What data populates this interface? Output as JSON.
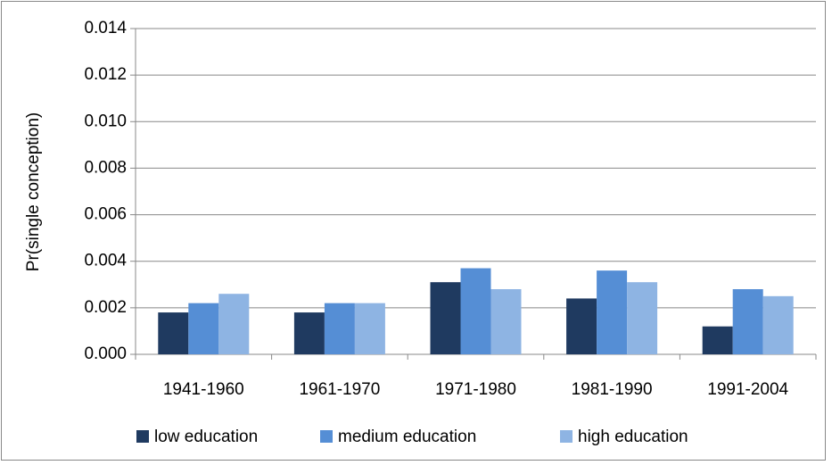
{
  "chart_data": {
    "type": "bar",
    "y_label": "Pr(single conception)",
    "categories": [
      "1941-1960",
      "1961-1970",
      "1971-1980",
      "1981-1990",
      "1991-2004"
    ],
    "series": [
      {
        "name": "low education",
        "color": "#1f3a60",
        "values": [
          0.0018,
          0.0018,
          0.0031,
          0.0024,
          0.0012
        ]
      },
      {
        "name": "medium education",
        "color": "#558ed5",
        "values": [
          0.0022,
          0.0022,
          0.0037,
          0.0036,
          0.0028
        ]
      },
      {
        "name": "high education",
        "color": "#8eb4e3",
        "values": [
          0.0026,
          0.0022,
          0.0028,
          0.0031,
          0.0025
        ]
      }
    ],
    "ylim": [
      0,
      0.014
    ],
    "yticks": [
      {
        "value": 0,
        "label": "0.000"
      },
      {
        "value": 0.002,
        "label": "0.002"
      },
      {
        "value": 0.004,
        "label": "0.004"
      },
      {
        "value": 0.006,
        "label": "0.006"
      },
      {
        "value": 0.008,
        "label": "0.008"
      },
      {
        "value": 0.01,
        "label": "0.010"
      },
      {
        "value": 0.012,
        "label": "0.012"
      },
      {
        "value": 0.014,
        "label": "0.014"
      }
    ],
    "grid": true,
    "legend": "bottom"
  }
}
